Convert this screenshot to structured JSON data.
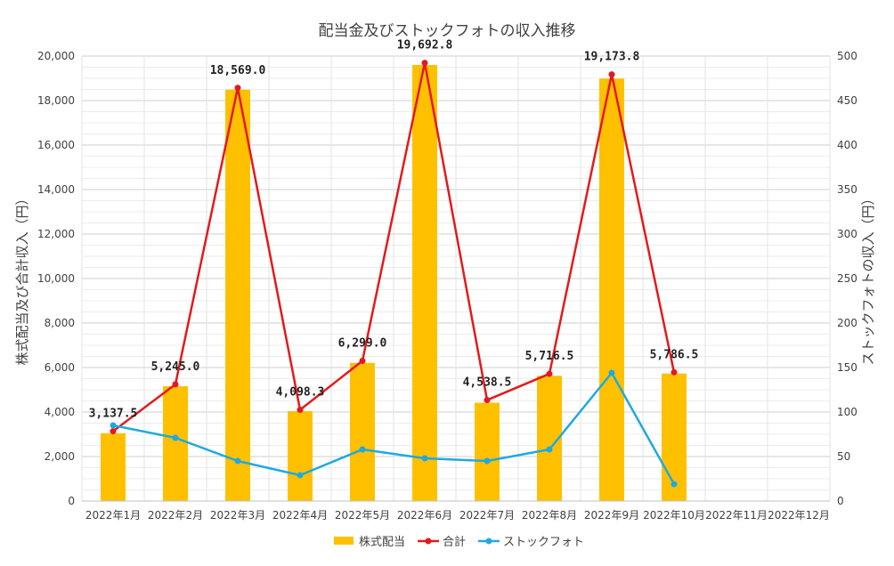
{
  "chart_data": {
    "type": "bar",
    "title": "配当金及びストックフォトの収入推移",
    "categories": [
      "2022年1月",
      "2022年2月",
      "2022年3月",
      "2022年4月",
      "2022年5月",
      "2022年6月",
      "2022年7月",
      "2022年8月",
      "2022年9月",
      "2022年10月",
      "2022年11月",
      "2022年12月"
    ],
    "ylabel_left": "株式配当及び合計収入（円）",
    "ylabel_right": "ストックフォトの収入（円）",
    "ylim_left": [
      0,
      20000
    ],
    "ylim_right": [
      0,
      500
    ],
    "yticks_left": [
      "0",
      "2,000",
      "4,000",
      "6,000",
      "8,000",
      "10,000",
      "12,000",
      "14,000",
      "16,000",
      "18,000",
      "20,000"
    ],
    "yticks_right": [
      "0",
      "50",
      "100",
      "150",
      "200",
      "250",
      "300",
      "350",
      "400",
      "450",
      "500"
    ],
    "grid": true,
    "legend_position": "bottom",
    "series": [
      {
        "name": "株式配当",
        "kind": "bar",
        "axis": "left",
        "color": "#ffc000",
        "values": [
          3050,
          5160,
          18490,
          4040,
          6210,
          19600,
          4420,
          5630,
          18990,
          5730,
          null,
          null
        ]
      },
      {
        "name": "合計",
        "kind": "line",
        "axis": "left",
        "color": "#e31a1c",
        "values": [
          3137.5,
          5245.0,
          18569.0,
          4098.3,
          6299.0,
          19692.8,
          4538.5,
          5716.5,
          19173.8,
          5786.5,
          null,
          null
        ],
        "labels": [
          "3,137.5",
          "5,245.0",
          "18,569.0",
          "4,098.3",
          "6,299.0",
          "19,692.8",
          "4,538.5",
          "5,716.5",
          "19,173.8",
          "5,786.5",
          "",
          ""
        ]
      },
      {
        "name": "ストックフォト",
        "kind": "line",
        "axis": "right",
        "color": "#1fa9e1",
        "values": [
          85,
          71,
          45,
          29,
          58,
          48,
          45,
          58,
          144,
          19,
          null,
          null
        ]
      }
    ]
  }
}
